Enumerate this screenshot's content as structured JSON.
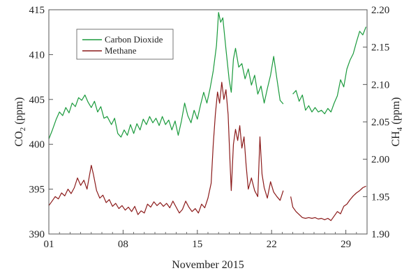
{
  "chart_data": {
    "type": "line",
    "xlabel": "November 2015",
    "x_ticks": [
      "01",
      "08",
      "15",
      "22",
      "29"
    ],
    "x_tick_days": [
      1,
      8,
      15,
      22,
      29
    ],
    "xlim": [
      1,
      31
    ],
    "y_left": {
      "label_main": "CO",
      "label_sub": "2",
      "label_unit": " (ppm)",
      "ylim": [
        390,
        415
      ],
      "ticks": [
        390,
        395,
        400,
        405,
        410,
        415
      ],
      "tick_labels": [
        "390",
        "395",
        "400",
        "405",
        "410",
        "415"
      ]
    },
    "y_right": {
      "label_main": "CH",
      "label_sub": "4",
      "label_unit": " (ppm)",
      "ylim": [
        1.9,
        2.2
      ],
      "ticks": [
        1.9,
        1.95,
        2.0,
        2.05,
        2.1,
        2.15,
        2.2
      ],
      "tick_labels": [
        "1.90",
        "1.95",
        "2.00",
        "2.05",
        "2.10",
        "2.15",
        "2.20"
      ]
    },
    "legend": {
      "placement": "top-left"
    },
    "series": [
      {
        "name": "Carbon Dioxide",
        "axis": "left",
        "color": "#1a9a3c",
        "segments": [
          [
            [
              1.0,
              400.6
            ],
            [
              1.3,
              401.5
            ],
            [
              1.7,
              402.8
            ],
            [
              2.0,
              403.6
            ],
            [
              2.3,
              403.2
            ],
            [
              2.6,
              404.1
            ],
            [
              2.9,
              403.5
            ],
            [
              3.2,
              404.6
            ],
            [
              3.5,
              404.2
            ],
            [
              3.8,
              405.2
            ],
            [
              4.1,
              404.9
            ],
            [
              4.4,
              405.5
            ],
            [
              4.7,
              404.7
            ],
            [
              5.0,
              404.1
            ],
            [
              5.3,
              404.8
            ],
            [
              5.6,
              403.6
            ],
            [
              5.9,
              404.2
            ],
            [
              6.2,
              402.9
            ],
            [
              6.5,
              403.1
            ],
            [
              6.9,
              402.2
            ],
            [
              7.2,
              402.9
            ],
            [
              7.5,
              401.2
            ],
            [
              7.8,
              400.8
            ],
            [
              8.1,
              401.6
            ],
            [
              8.4,
              401.0
            ],
            [
              8.7,
              402.2
            ],
            [
              9.0,
              401.2
            ],
            [
              9.3,
              402.3
            ],
            [
              9.6,
              401.6
            ],
            [
              9.9,
              402.8
            ],
            [
              10.2,
              402.2
            ],
            [
              10.5,
              403.1
            ],
            [
              10.8,
              402.4
            ],
            [
              11.1,
              402.9
            ],
            [
              11.4,
              402.1
            ],
            [
              11.7,
              403.1
            ],
            [
              12.0,
              402.2
            ],
            [
              12.3,
              402.7
            ],
            [
              12.6,
              401.6
            ],
            [
              12.9,
              402.6
            ],
            [
              13.2,
              401.0
            ],
            [
              13.5,
              402.6
            ],
            [
              13.8,
              404.6
            ],
            [
              14.1,
              403.2
            ],
            [
              14.4,
              402.4
            ],
            [
              14.7,
              403.8
            ],
            [
              15.0,
              402.8
            ],
            [
              15.3,
              404.4
            ],
            [
              15.6,
              405.8
            ],
            [
              15.9,
              404.6
            ],
            [
              16.2,
              406.2
            ],
            [
              16.5,
              408.2
            ],
            [
              16.8,
              411.0
            ],
            [
              17.0,
              414.7
            ],
            [
              17.2,
              413.6
            ],
            [
              17.4,
              414.1
            ],
            [
              17.7,
              410.6
            ],
            [
              18.0,
              407.2
            ],
            [
              18.2,
              405.8
            ],
            [
              18.4,
              409.5
            ],
            [
              18.6,
              410.7
            ],
            [
              18.9,
              408.6
            ],
            [
              19.2,
              409.0
            ],
            [
              19.5,
              407.3
            ],
            [
              19.8,
              408.4
            ],
            [
              20.1,
              406.6
            ],
            [
              20.4,
              407.7
            ],
            [
              20.7,
              405.6
            ],
            [
              21.0,
              406.5
            ],
            [
              21.3,
              404.6
            ],
            [
              21.6,
              406.2
            ],
            [
              21.9,
              407.7
            ],
            [
              22.2,
              409.8
            ],
            [
              22.5,
              407.3
            ],
            [
              22.8,
              404.9
            ],
            [
              23.1,
              404.5
            ]
          ],
          [
            [
              24.0,
              405.6
            ],
            [
              24.3,
              406.0
            ],
            [
              24.6,
              404.8
            ],
            [
              24.9,
              405.5
            ],
            [
              25.2,
              403.8
            ],
            [
              25.5,
              404.3
            ],
            [
              25.8,
              403.6
            ],
            [
              26.1,
              404.1
            ],
            [
              26.4,
              403.6
            ],
            [
              26.7,
              403.8
            ],
            [
              27.0,
              403.4
            ],
            [
              27.3,
              404.0
            ],
            [
              27.6,
              403.6
            ],
            [
              27.9,
              404.6
            ],
            [
              28.2,
              405.4
            ],
            [
              28.5,
              407.2
            ],
            [
              28.8,
              406.4
            ],
            [
              29.1,
              408.4
            ],
            [
              29.4,
              409.4
            ],
            [
              29.7,
              410.1
            ],
            [
              30.0,
              411.4
            ],
            [
              30.3,
              412.6
            ],
            [
              30.6,
              412.2
            ],
            [
              30.9,
              413.1
            ]
          ]
        ]
      },
      {
        "name": "Methane",
        "axis": "right",
        "color": "#8b1a1a",
        "segments": [
          [
            [
              1.0,
              1.938
            ],
            [
              1.3,
              1.944
            ],
            [
              1.6,
              1.95
            ],
            [
              1.9,
              1.947
            ],
            [
              2.2,
              1.955
            ],
            [
              2.5,
              1.951
            ],
            [
              2.8,
              1.96
            ],
            [
              3.1,
              1.954
            ],
            [
              3.4,
              1.962
            ],
            [
              3.7,
              1.975
            ],
            [
              4.0,
              1.965
            ],
            [
              4.3,
              1.972
            ],
            [
              4.6,
              1.96
            ],
            [
              4.9,
              1.984
            ],
            [
              5.0,
              1.992
            ],
            [
              5.2,
              1.98
            ],
            [
              5.5,
              1.958
            ],
            [
              5.8,
              1.948
            ],
            [
              6.1,
              1.952
            ],
            [
              6.4,
              1.942
            ],
            [
              6.7,
              1.946
            ],
            [
              7.0,
              1.937
            ],
            [
              7.3,
              1.941
            ],
            [
              7.6,
              1.934
            ],
            [
              7.9,
              1.938
            ],
            [
              8.2,
              1.932
            ],
            [
              8.5,
              1.936
            ],
            [
              8.8,
              1.93
            ],
            [
              9.1,
              1.937
            ],
            [
              9.4,
              1.926
            ],
            [
              9.7,
              1.931
            ],
            [
              10.0,
              1.928
            ],
            [
              10.3,
              1.94
            ],
            [
              10.6,
              1.936
            ],
            [
              10.9,
              1.943
            ],
            [
              11.2,
              1.938
            ],
            [
              11.5,
              1.942
            ],
            [
              11.8,
              1.937
            ],
            [
              12.1,
              1.941
            ],
            [
              12.4,
              1.935
            ],
            [
              12.7,
              1.944
            ],
            [
              13.0,
              1.936
            ],
            [
              13.3,
              1.928
            ],
            [
              13.6,
              1.933
            ],
            [
              13.9,
              1.944
            ],
            [
              14.2,
              1.936
            ],
            [
              14.5,
              1.93
            ],
            [
              14.8,
              1.934
            ],
            [
              15.1,
              1.928
            ],
            [
              15.4,
              1.94
            ],
            [
              15.7,
              1.935
            ],
            [
              16.0,
              1.948
            ],
            [
              16.3,
              1.968
            ],
            [
              16.5,
              2.02
            ],
            [
              16.7,
              2.06
            ],
            [
              16.9,
              2.09
            ],
            [
              17.1,
              2.075
            ],
            [
              17.3,
              2.103
            ],
            [
              17.5,
              2.08
            ],
            [
              17.7,
              2.093
            ],
            [
              17.9,
              2.06
            ],
            [
              18.1,
              1.99
            ],
            [
              18.2,
              1.958
            ],
            [
              18.4,
              2.02
            ],
            [
              18.6,
              2.04
            ],
            [
              18.8,
              2.025
            ],
            [
              19.0,
              2.045
            ],
            [
              19.2,
              2.015
            ],
            [
              19.4,
              2.03
            ],
            [
              19.6,
              1.992
            ],
            [
              19.8,
              1.96
            ],
            [
              20.1,
              1.975
            ],
            [
              20.4,
              1.958
            ],
            [
              20.7,
              1.95
            ],
            [
              20.9,
              2.03
            ],
            [
              21.1,
              1.98
            ],
            [
              21.3,
              1.962
            ],
            [
              21.6,
              1.948
            ],
            [
              21.9,
              1.97
            ],
            [
              22.2,
              1.956
            ],
            [
              22.5,
              1.95
            ],
            [
              22.8,
              1.945
            ],
            [
              23.1,
              1.958
            ]
          ],
          [
            [
              23.8,
              1.95
            ],
            [
              24.0,
              1.936
            ],
            [
              24.3,
              1.93
            ],
            [
              24.6,
              1.926
            ],
            [
              24.9,
              1.922
            ],
            [
              25.2,
              1.921
            ],
            [
              25.5,
              1.922
            ],
            [
              25.8,
              1.921
            ],
            [
              26.1,
              1.922
            ],
            [
              26.4,
              1.92
            ],
            [
              26.7,
              1.921
            ],
            [
              27.0,
              1.919
            ],
            [
              27.3,
              1.921
            ],
            [
              27.6,
              1.918
            ],
            [
              27.9,
              1.924
            ],
            [
              28.2,
              1.93
            ],
            [
              28.5,
              1.927
            ],
            [
              28.8,
              1.937
            ],
            [
              29.1,
              1.94
            ],
            [
              29.4,
              1.946
            ],
            [
              29.7,
              1.951
            ],
            [
              30.0,
              1.955
            ],
            [
              30.3,
              1.958
            ],
            [
              30.6,
              1.962
            ],
            [
              30.9,
              1.964
            ]
          ]
        ]
      }
    ]
  }
}
